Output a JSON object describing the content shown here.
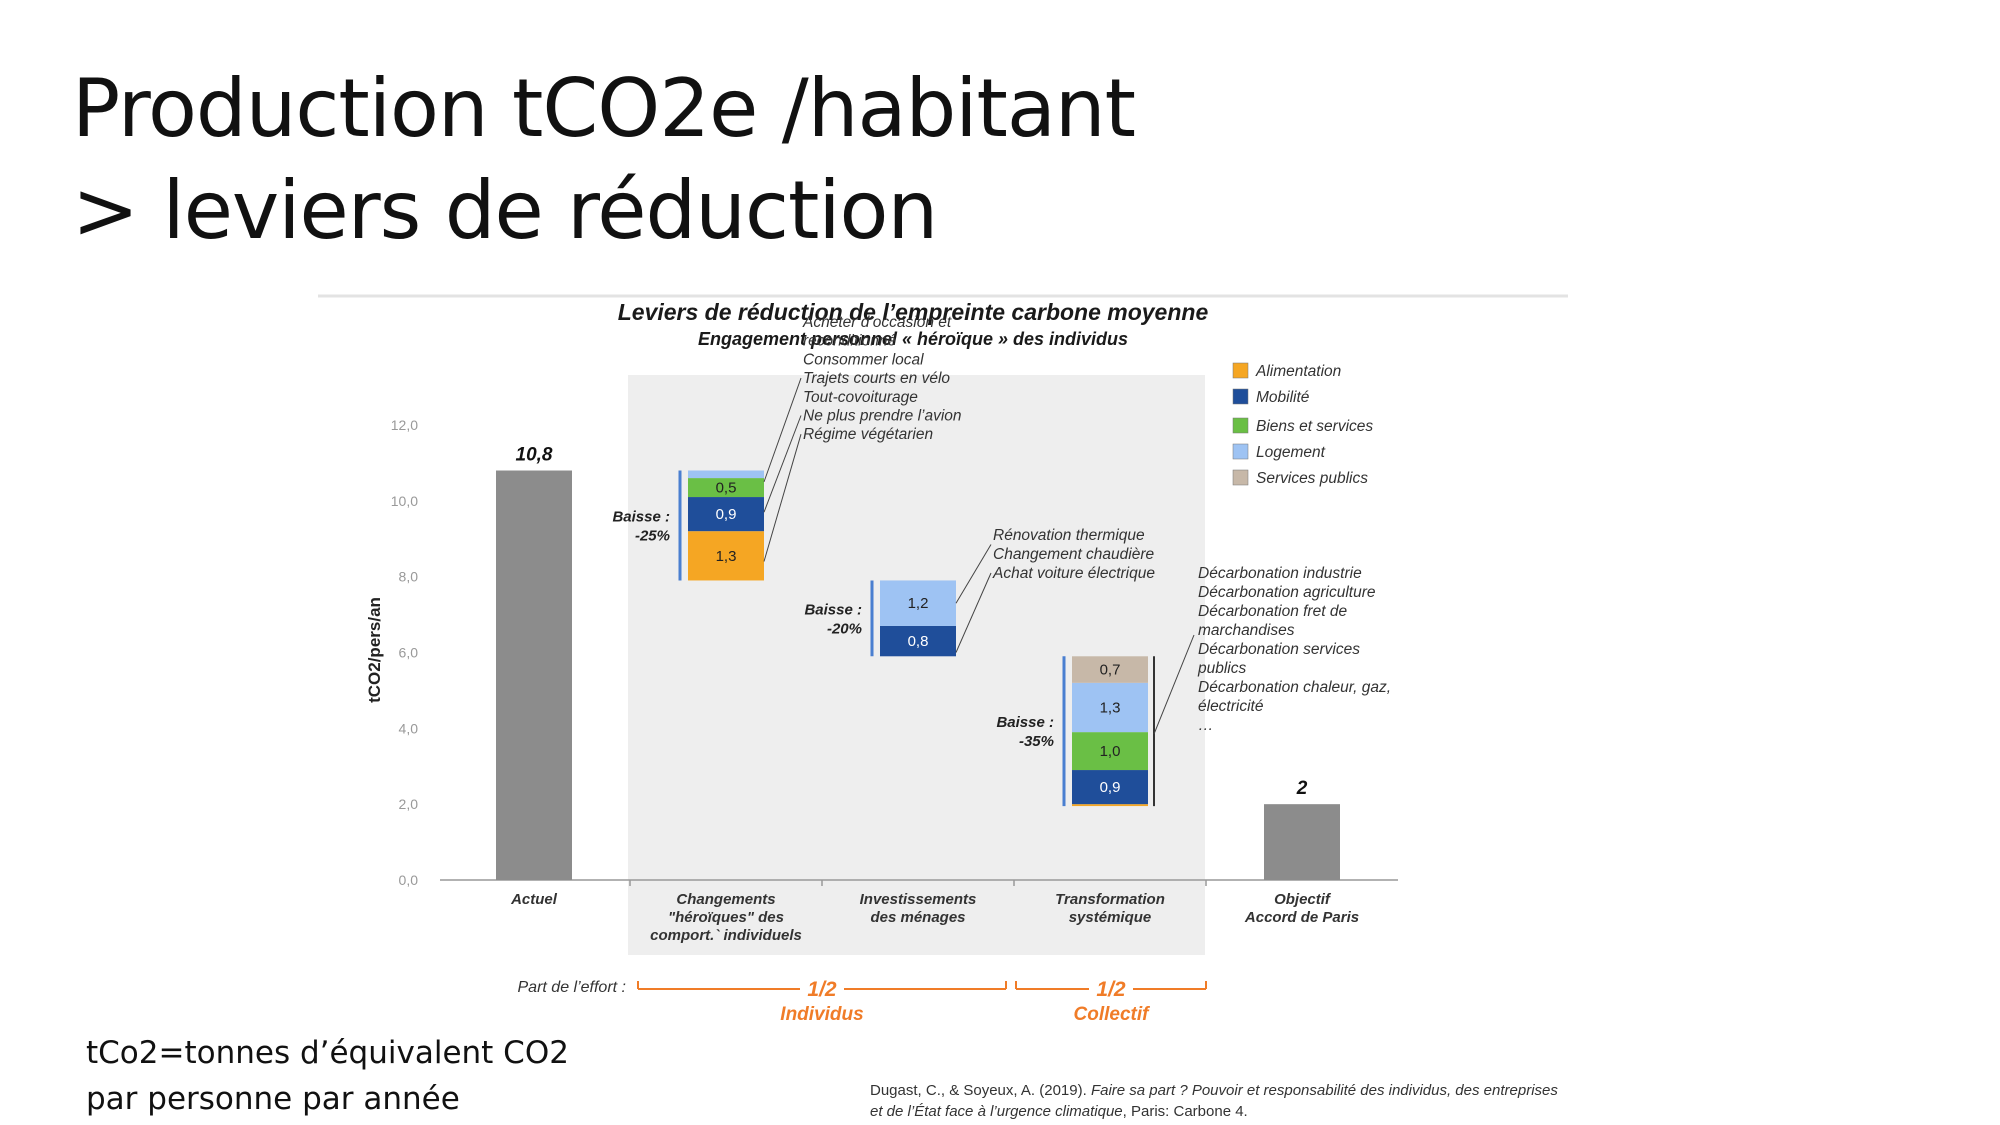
{
  "slide": {
    "title_line1": "Production tCO2e /habitant",
    "title_line2": "> leviers de réduction",
    "footnote_line1": "tCo2=tonnes d’équivalent CO2",
    "footnote_line2": "par personne par année",
    "citation_line1_plain": "Dugast, C., & Soyeux, A. (2019). ",
    "citation_line1_italic": "Faire sa part ? Pouvoir et responsabilité des individus, des entreprises",
    "citation_line2_italic": "et de l’État face à l’urgence climatique",
    "citation_line2_plain": ", Paris: Carbone 4."
  },
  "colors": {
    "Alimentation": "#f5a623",
    "Mobilité": "#1f4e9a",
    "Biens et services": "#6abf45",
    "Logement": "#9ec3f3",
    "Services publics": "#c7b8a8",
    "grey_bar": "#8c8c8c",
    "panel": "#eeeeee",
    "orange": "#f07c28",
    "blue_bracket": "#4a7fd0"
  },
  "chart_data": {
    "type": "bar",
    "title": "Leviers de réduction de l’empreinte carbone moyenne",
    "subtitle": "Engagement personnel « héroïque » des individus",
    "ylabel": "tCO2/pers/an",
    "ylim": [
      0,
      12
    ],
    "yticks": [
      "0,0",
      "2,0",
      "4,0",
      "6,0",
      "8,0",
      "10,0",
      "12,0"
    ],
    "legend": [
      "Alimentation",
      "Mobilité",
      "Biens et services",
      "Logement",
      "Services publics"
    ],
    "categories": [
      {
        "lines": [
          "Actuel"
        ]
      },
      {
        "lines": [
          "Changements",
          "\"héroïques\" des",
          "comport.` individuels"
        ]
      },
      {
        "lines": [
          "Investissements",
          "des ménages"
        ]
      },
      {
        "lines": [
          "Transformation",
          "systémique"
        ]
      },
      {
        "lines": [
          "Objectif",
          "Accord de Paris"
        ]
      }
    ],
    "totals": [
      {
        "category": 0,
        "value": 10.8,
        "label": "10,8"
      },
      {
        "category": 4,
        "value": 2.0,
        "label": "2"
      }
    ],
    "steps": [
      {
        "category": 1,
        "baisse_label": "Baisse :",
        "baisse_pct": "-25%",
        "segments": [
          {
            "series": "Alimentation",
            "value": 1.3,
            "label": "1,3"
          },
          {
            "series": "Mobilité",
            "value": 0.9,
            "label": "0,9"
          },
          {
            "series": "Biens et services",
            "value": 0.5,
            "label": "0,5"
          },
          {
            "series": "Logement",
            "value": 0.2,
            "label": ""
          }
        ],
        "annotations": [
          "Acheter d’occasion et",
          "reconditionné",
          "Consommer local",
          "Trajets courts en vélo",
          "Tout-covoiturage",
          "Ne plus prendre l’avion",
          "Régime végétarien"
        ]
      },
      {
        "category": 2,
        "baisse_label": "Baisse :",
        "baisse_pct": "-20%",
        "segments": [
          {
            "series": "Mobilité",
            "value": 0.8,
            "label": "0,8"
          },
          {
            "series": "Logement",
            "value": 1.2,
            "label": "1,2"
          }
        ],
        "annotations": [
          "Rénovation thermique",
          "Changement chaudière",
          "Achat voiture électrique"
        ]
      },
      {
        "category": 3,
        "baisse_label": "Baisse :",
        "baisse_pct": "-35%",
        "segments": [
          {
            "series": "Alimentation",
            "value": 0.05,
            "label": ""
          },
          {
            "series": "Mobilité",
            "value": 0.9,
            "label": "0,9"
          },
          {
            "series": "Biens et services",
            "value": 1.0,
            "label": "1,0"
          },
          {
            "series": "Logement",
            "value": 1.3,
            "label": "1,3"
          },
          {
            "series": "Services publics",
            "value": 0.7,
            "label": "0,7"
          }
        ],
        "annotations": [
          "Décarbonation industrie",
          "Décarbonation agriculture",
          "Décarbonation fret de",
          "marchandises",
          "Décarbonation services",
          "publics",
          "Décarbonation chaleur, gaz,",
          "électricité",
          "…"
        ]
      }
    ],
    "effort": {
      "label": "Part de l’effort :",
      "groups": [
        {
          "fraction": "1/2",
          "name": "Individus"
        },
        {
          "fraction": "1/2",
          "name": "Collectif"
        }
      ]
    }
  }
}
